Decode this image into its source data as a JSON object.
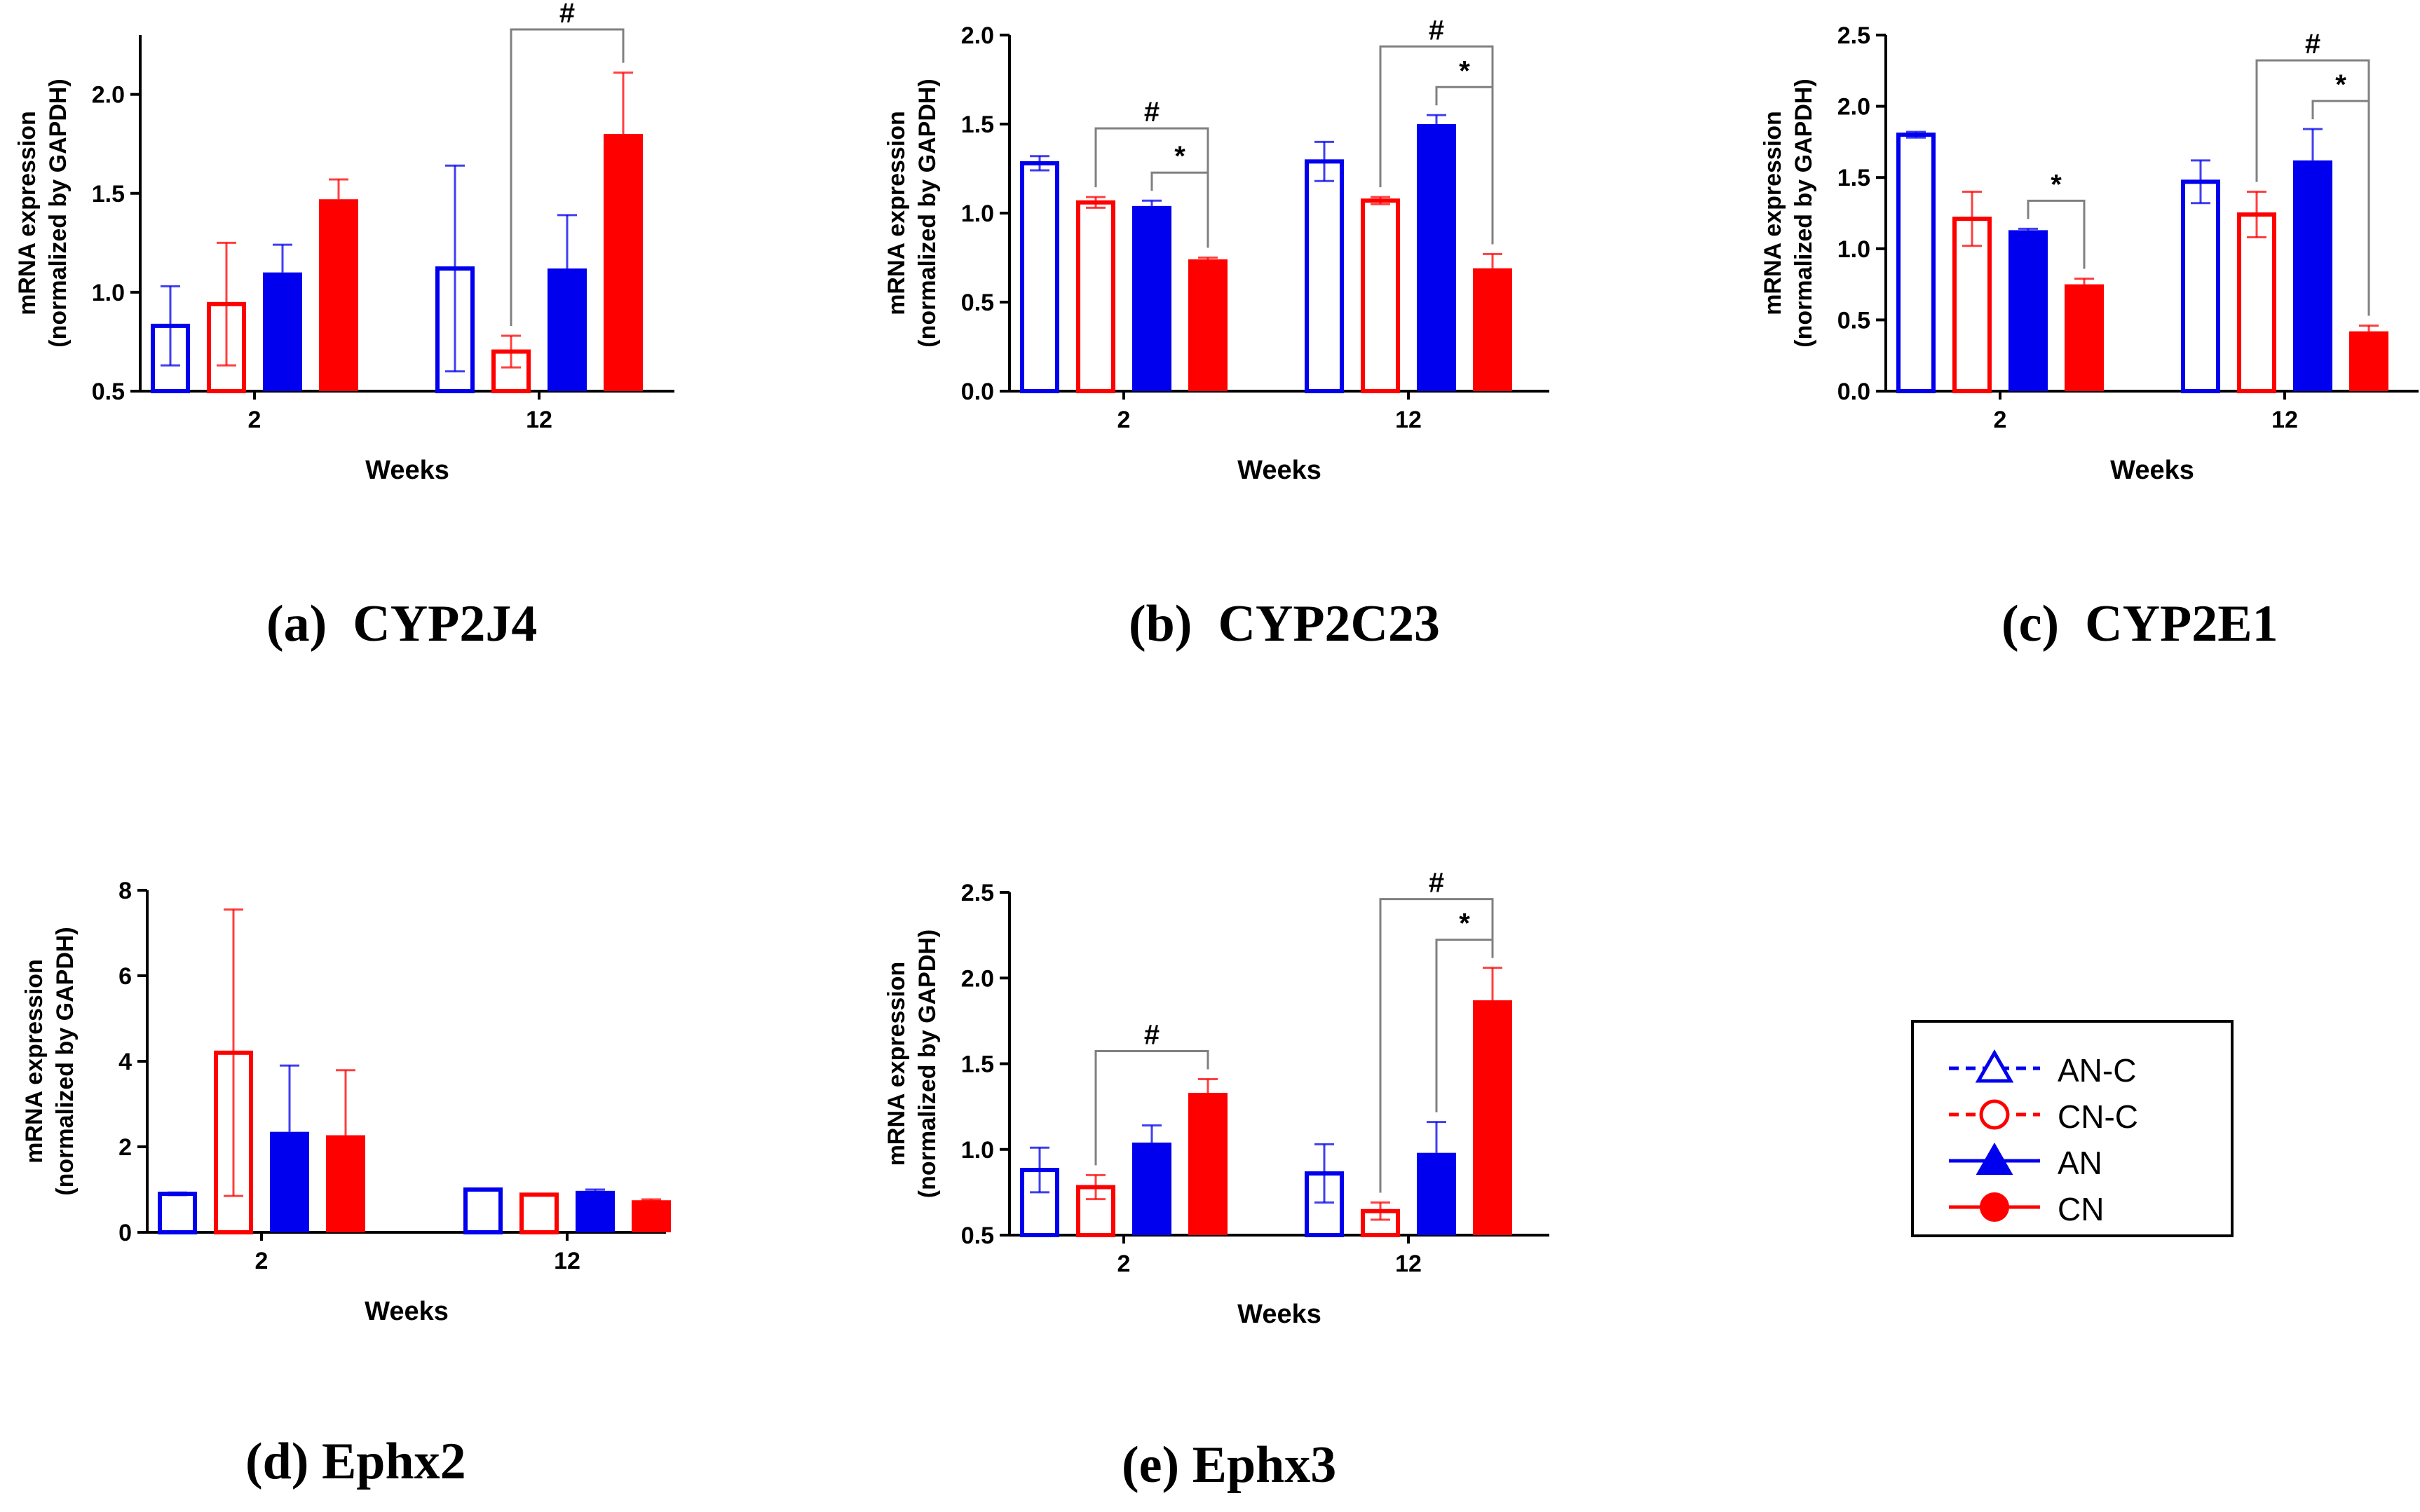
{
  "colors": {
    "blue": "#0000ee",
    "red": "#ff0000",
    "axis": "#000000",
    "bracket": "#808080"
  },
  "legend": {
    "items": [
      {
        "label": "AN-C",
        "color": "#0000ee",
        "marker": "open-triangle",
        "line": "dashed"
      },
      {
        "label": "CN-C",
        "color": "#ff0000",
        "marker": "open-circle",
        "line": "dashed"
      },
      {
        "label": "AN",
        "color": "#0000ee",
        "marker": "filled-triangle",
        "line": "solid"
      },
      {
        "label": "CN",
        "color": "#ff0000",
        "marker": "filled-circle",
        "line": "solid"
      }
    ]
  },
  "captions": {
    "a": "(a)  CYP2J4",
    "b": "(b)  CYP2C23",
    "c": "(c)  CYP2E1",
    "d": "(d) Ephx2",
    "e": "(e) Ephx3"
  },
  "chart_data": [
    {
      "id": "a",
      "type": "bar",
      "ylabel": [
        "mRNA expression",
        "(normalized by GAPDH)"
      ],
      "xlabel": "Weeks",
      "categories": [
        "2",
        "12"
      ],
      "ylim": [
        0.5,
        2.3
      ],
      "yticks": [
        0.5,
        1.0,
        1.5,
        2.0
      ],
      "ytick_labels": [
        "0.5",
        "1.0",
        "1.5",
        "2.0"
      ],
      "series": [
        {
          "name": "AN-C",
          "style": "open",
          "color": "#0000ee",
          "values": [
            0.83,
            1.12
          ],
          "errors": [
            0.2,
            0.52
          ]
        },
        {
          "name": "CN-C",
          "style": "open",
          "color": "#ff0000",
          "values": [
            0.94,
            0.7
          ],
          "errors": [
            0.31,
            0.08
          ]
        },
        {
          "name": "AN",
          "style": "filled",
          "color": "#0000ee",
          "values": [
            1.1,
            1.12
          ],
          "errors": [
            0.14,
            0.27
          ]
        },
        {
          "name": "CN",
          "style": "filled",
          "color": "#ff0000",
          "values": [
            1.47,
            1.8
          ],
          "errors": [
            0.1,
            0.31
          ]
        }
      ],
      "annotations": [
        {
          "label": "#",
          "group": 1,
          "from": 1,
          "to": 3,
          "level": 1
        }
      ]
    },
    {
      "id": "b",
      "type": "bar",
      "ylabel": [
        "mRNA expression",
        "(normalized by GAPDH)"
      ],
      "xlabel": "Weeks",
      "categories": [
        "2",
        "12"
      ],
      "ylim": [
        0.0,
        2.0
      ],
      "yticks": [
        0.0,
        0.5,
        1.0,
        1.5,
        2.0
      ],
      "ytick_labels": [
        "0.0",
        "0.5",
        "1.0",
        "1.5",
        "2.0"
      ],
      "series": [
        {
          "name": "AN-C",
          "style": "open",
          "color": "#0000ee",
          "values": [
            1.28,
            1.29
          ],
          "errors": [
            0.04,
            0.11
          ]
        },
        {
          "name": "CN-C",
          "style": "open",
          "color": "#ff0000",
          "values": [
            1.06,
            1.07
          ],
          "errors": [
            0.03,
            0.02
          ]
        },
        {
          "name": "AN",
          "style": "filled",
          "color": "#0000ee",
          "values": [
            1.04,
            1.5
          ],
          "errors": [
            0.03,
            0.05
          ]
        },
        {
          "name": "CN",
          "style": "filled",
          "color": "#ff0000",
          "values": [
            0.74,
            0.69
          ],
          "errors": [
            0.01,
            0.08
          ]
        }
      ],
      "annotations": [
        {
          "label": "#",
          "group": 0,
          "from": 1,
          "to": 3,
          "level": 1
        },
        {
          "label": "*",
          "group": 0,
          "from": 2,
          "to": 3,
          "level": 0
        },
        {
          "label": "#",
          "group": 1,
          "from": 1,
          "to": 3,
          "level": 1
        },
        {
          "label": "*",
          "group": 1,
          "from": 2,
          "to": 3,
          "level": 0
        }
      ]
    },
    {
      "id": "c",
      "type": "bar",
      "ylabel": [
        "mRNA expression",
        "(normalized by GAPDH)"
      ],
      "xlabel": "Weeks",
      "categories": [
        "2",
        "12"
      ],
      "ylim": [
        0.0,
        2.5
      ],
      "yticks": [
        0.0,
        0.5,
        1.0,
        1.5,
        2.0,
        2.5
      ],
      "ytick_labels": [
        "0.0",
        "0.5",
        "1.0",
        "1.5",
        "2.0",
        "2.5"
      ],
      "series": [
        {
          "name": "AN-C",
          "style": "open",
          "color": "#0000ee",
          "values": [
            1.8,
            1.47
          ],
          "errors": [
            0.02,
            0.15
          ]
        },
        {
          "name": "CN-C",
          "style": "open",
          "color": "#ff0000",
          "values": [
            1.21,
            1.24
          ],
          "errors": [
            0.19,
            0.16
          ]
        },
        {
          "name": "AN",
          "style": "filled",
          "color": "#0000ee",
          "values": [
            1.13,
            1.62
          ],
          "errors": [
            0.01,
            0.22
          ]
        },
        {
          "name": "CN",
          "style": "filled",
          "color": "#ff0000",
          "values": [
            0.75,
            0.42
          ],
          "errors": [
            0.04,
            0.04
          ]
        }
      ],
      "annotations": [
        {
          "label": "*",
          "group": 0,
          "from": 2,
          "to": 3,
          "level": 0
        },
        {
          "label": "#",
          "group": 1,
          "from": 1,
          "to": 3,
          "level": 1
        },
        {
          "label": "*",
          "group": 1,
          "from": 2,
          "to": 3,
          "level": 0
        }
      ]
    },
    {
      "id": "d",
      "type": "bar",
      "ylabel": [
        "mRNA expression",
        "(normalized by GAPDH)"
      ],
      "xlabel": "Weeks",
      "categories": [
        "2",
        "12"
      ],
      "ylim": [
        0,
        8
      ],
      "yticks": [
        0,
        2,
        4,
        6,
        8
      ],
      "ytick_labels": [
        "0",
        "2",
        "4",
        "6",
        "8"
      ],
      "series": [
        {
          "name": "AN-C",
          "style": "open",
          "color": "#0000ee",
          "values": [
            0.9,
            1.0
          ],
          "errors": [
            0.03,
            0.02
          ]
        },
        {
          "name": "CN-C",
          "style": "open",
          "color": "#ff0000",
          "values": [
            4.2,
            0.88
          ],
          "errors": [
            3.35,
            0.02
          ]
        },
        {
          "name": "AN",
          "style": "filled",
          "color": "#0000ee",
          "values": [
            2.35,
            0.97
          ],
          "errors": [
            1.55,
            0.03
          ]
        },
        {
          "name": "CN",
          "style": "filled",
          "color": "#ff0000",
          "values": [
            2.27,
            0.75
          ],
          "errors": [
            1.52,
            0.02
          ]
        }
      ],
      "annotations": []
    },
    {
      "id": "e",
      "type": "bar",
      "ylabel": [
        "mRNA expression",
        "(normalized by GAPDH)"
      ],
      "xlabel": "Weeks",
      "categories": [
        "2",
        "12"
      ],
      "ylim": [
        0.5,
        2.5
      ],
      "yticks": [
        0.5,
        1.0,
        1.5,
        2.0,
        2.5
      ],
      "ytick_labels": [
        "0.5",
        "1.0",
        "1.5",
        "2.0",
        "2.5"
      ],
      "series": [
        {
          "name": "AN-C",
          "style": "open",
          "color": "#0000ee",
          "values": [
            0.88,
            0.86
          ],
          "errors": [
            0.13,
            0.17
          ]
        },
        {
          "name": "CN-C",
          "style": "open",
          "color": "#ff0000",
          "values": [
            0.78,
            0.64
          ],
          "errors": [
            0.07,
            0.05
          ]
        },
        {
          "name": "AN",
          "style": "filled",
          "color": "#0000ee",
          "values": [
            1.04,
            0.98
          ],
          "errors": [
            0.1,
            0.18
          ]
        },
        {
          "name": "CN",
          "style": "filled",
          "color": "#ff0000",
          "values": [
            1.33,
            1.87
          ],
          "errors": [
            0.08,
            0.19
          ]
        }
      ],
      "annotations": [
        {
          "label": "#",
          "group": 0,
          "from": 1,
          "to": 3,
          "level": 0
        },
        {
          "label": "#",
          "group": 1,
          "from": 1,
          "to": 3,
          "level": 1
        },
        {
          "label": "*",
          "group": 1,
          "from": 2,
          "to": 3,
          "level": 0
        }
      ]
    }
  ]
}
